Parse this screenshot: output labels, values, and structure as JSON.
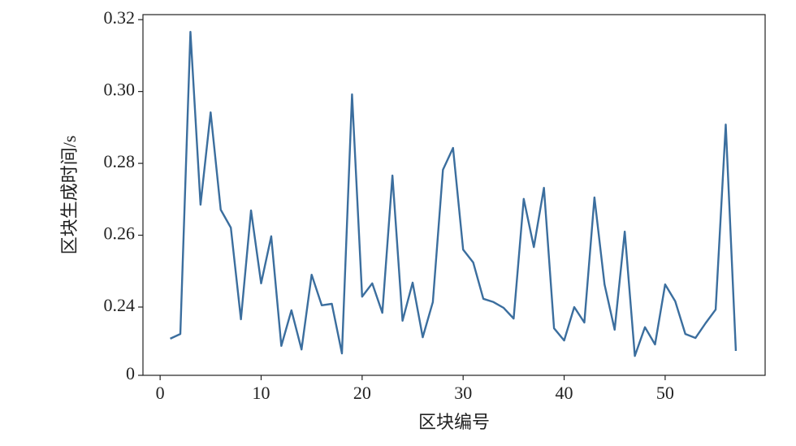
{
  "chart_data": {
    "type": "line",
    "x_label": "区块编号",
    "y_label": "区块生成时间/s",
    "x": [
      1,
      2,
      3,
      4,
      5,
      6,
      7,
      8,
      9,
      10,
      11,
      12,
      13,
      14,
      15,
      16,
      17,
      18,
      19,
      20,
      21,
      22,
      23,
      24,
      25,
      26,
      27,
      28,
      29,
      30,
      31,
      32,
      33,
      34,
      35,
      36,
      37,
      38,
      39,
      40,
      41,
      42,
      43,
      44,
      45,
      46,
      47,
      48,
      49,
      50,
      51,
      52,
      53,
      54,
      55,
      56,
      57
    ],
    "series": [
      {
        "color": "#3b6e9e",
        "values": [
          0.2312,
          0.2325,
          0.3166,
          0.2685,
          0.2942,
          0.2671,
          0.2621,
          0.2366,
          0.2669,
          0.2466,
          0.2597,
          0.2292,
          0.2391,
          0.2282,
          0.249,
          0.2405,
          0.2409,
          0.2271,
          0.2992,
          0.2429,
          0.2466,
          0.2384,
          0.2766,
          0.2362,
          0.2468,
          0.2316,
          0.2414,
          0.2782,
          0.2843,
          0.256,
          0.2524,
          0.2423,
          0.2414,
          0.2398,
          0.2368,
          0.2701,
          0.2567,
          0.2732,
          0.2341,
          0.2307,
          0.24,
          0.2357,
          0.2705,
          0.2463,
          0.2337,
          0.261,
          0.2264,
          0.2344,
          0.2296,
          0.2463,
          0.2416,
          0.2325,
          0.2314,
          0.2355,
          0.2393,
          0.2908,
          0.2278
        ]
      }
    ],
    "xlim": [
      -1.7,
      59.9
    ],
    "xticks": [
      0,
      10,
      20,
      30,
      40,
      50
    ],
    "ylim": [
      0.221,
      0.3214
    ],
    "yticks": [
      {
        "value": 0.221,
        "label": "0"
      },
      0.24,
      0.26,
      0.28,
      {
        "value": 0.3,
        "label": "0.30"
      },
      0.32
    ]
  }
}
